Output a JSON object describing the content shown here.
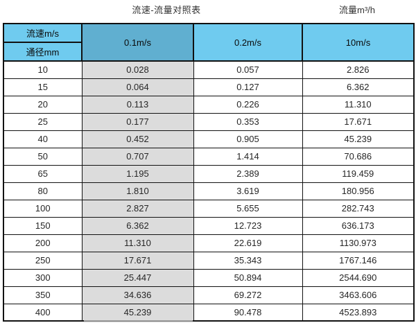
{
  "titles": {
    "main": "流速-流量对照表",
    "unit": "流量m³/h"
  },
  "table": {
    "corner_top": "流速m/s",
    "corner_bottom": "通径mm",
    "velocity_columns": [
      "0.1m/s",
      "0.2m/s",
      "10m/s"
    ],
    "highlighted_column": "0.1m/s",
    "rows": [
      {
        "dn": "10",
        "v01": "0.028",
        "v02": "0.057",
        "v10": "2.826"
      },
      {
        "dn": "15",
        "v01": "0.064",
        "v02": "0.127",
        "v10": "6.362"
      },
      {
        "dn": "20",
        "v01": "0.113",
        "v02": "0.226",
        "v10": "11.310"
      },
      {
        "dn": "25",
        "v01": "0.177",
        "v02": "0.353",
        "v10": "17.671"
      },
      {
        "dn": "40",
        "v01": "0.452",
        "v02": "0.905",
        "v10": "45.239"
      },
      {
        "dn": "50",
        "v01": "0.707",
        "v02": "1.414",
        "v10": "70.686"
      },
      {
        "dn": "65",
        "v01": "1.195",
        "v02": "2.389",
        "v10": "119.459"
      },
      {
        "dn": "80",
        "v01": "1.810",
        "v02": "3.619",
        "v10": "180.956"
      },
      {
        "dn": "100",
        "v01": "2.827",
        "v02": "5.655",
        "v10": "282.743"
      },
      {
        "dn": "150",
        "v01": "6.362",
        "v02": "12.723",
        "v10": "636.173"
      },
      {
        "dn": "200",
        "v01": "11.310",
        "v02": "22.619",
        "v10": "1130.973"
      },
      {
        "dn": "250",
        "v01": "17.671",
        "v02": "35.343",
        "v10": "1767.146"
      },
      {
        "dn": "300",
        "v01": "25.447",
        "v02": "50.894",
        "v10": "2544.690"
      },
      {
        "dn": "350",
        "v01": "34.636",
        "v02": "69.272",
        "v10": "3463.606"
      },
      {
        "dn": "400",
        "v01": "45.239",
        "v02": "90.478",
        "v10": "4523.893"
      }
    ]
  },
  "colors": {
    "header_blue": "#6fcbef",
    "header_blue_dim": "#60afd0",
    "column_gray": "#dcdcdc",
    "border": "#111111"
  },
  "chart_data": {
    "type": "table",
    "title": "流速-流量对照表",
    "unit_label": "流量m³/h",
    "row_header_label": "通径mm",
    "column_header_label": "流速m/s",
    "categories": [
      10,
      15,
      20,
      25,
      40,
      50,
      65,
      80,
      100,
      150,
      200,
      250,
      300,
      350,
      400
    ],
    "series": [
      {
        "name": "0.1m/s",
        "values": [
          0.028,
          0.064,
          0.113,
          0.177,
          0.452,
          0.707,
          1.195,
          1.81,
          2.827,
          6.362,
          11.31,
          17.671,
          25.447,
          34.636,
          45.239
        ]
      },
      {
        "name": "0.2m/s",
        "values": [
          0.057,
          0.127,
          0.226,
          0.353,
          0.905,
          1.414,
          2.389,
          3.619,
          5.655,
          12.723,
          22.619,
          35.343,
          50.894,
          69.272,
          90.478
        ]
      },
      {
        "name": "10m/s",
        "values": [
          2.826,
          6.362,
          11.31,
          17.671,
          45.239,
          70.686,
          119.459,
          180.956,
          282.743,
          636.173,
          1130.973,
          1767.146,
          2544.69,
          3463.606,
          4523.893
        ]
      }
    ],
    "highlighted_series": "0.1m/s"
  }
}
